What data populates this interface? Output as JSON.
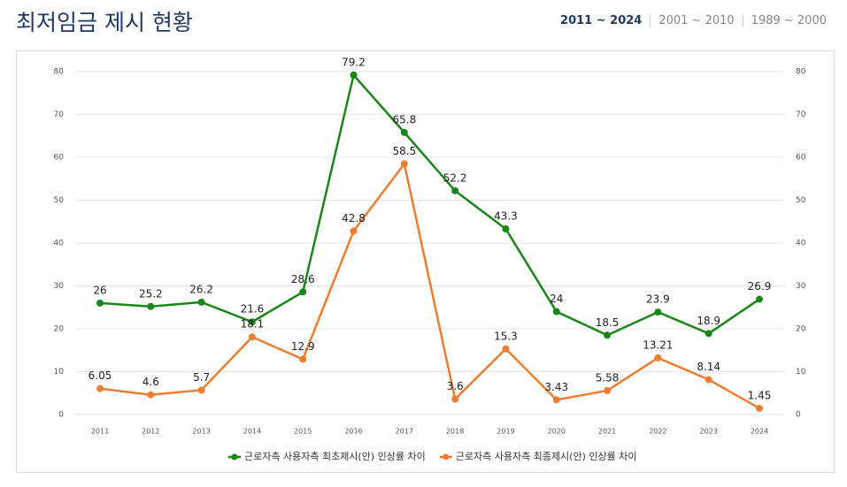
{
  "header": {
    "title": "최저임금 제시 현황",
    "tabs": [
      "2011 ~ 2024",
      "2001 ~ 2010",
      "1989 ~ 2000"
    ]
  },
  "chart_data": {
    "type": "line",
    "categories": [
      "2011",
      "2012",
      "2013",
      "2014",
      "2015",
      "2016",
      "2017",
      "2018",
      "2019",
      "2020",
      "2021",
      "2022",
      "2023",
      "2024"
    ],
    "series": [
      {
        "name": "근로자측 사용자측 최초제시(안) 인상률 차이",
        "color": "#1a861a",
        "values": [
          26,
          25.2,
          26.2,
          21.6,
          28.6,
          79.2,
          65.8,
          52.2,
          43.3,
          24,
          18.5,
          23.9,
          18.9,
          26.9
        ]
      },
      {
        "name": "근로자측 사용자측 최종제시(안) 인상률 차이",
        "color": "#ed7d31",
        "values": [
          6.05,
          4.6,
          5.7,
          18.1,
          12.9,
          42.8,
          58.5,
          3.6,
          15.3,
          3.43,
          5.58,
          13.21,
          8.14,
          1.45
        ]
      }
    ],
    "ylim": [
      0,
      80
    ],
    "yticks": [
      0,
      10,
      20,
      30,
      40,
      50,
      60,
      70,
      80
    ],
    "y2lim": [
      0,
      80
    ],
    "y2ticks": [
      0,
      10,
      20,
      30,
      40,
      50,
      60,
      70,
      80
    ],
    "grid": true,
    "legend": "bottom"
  }
}
